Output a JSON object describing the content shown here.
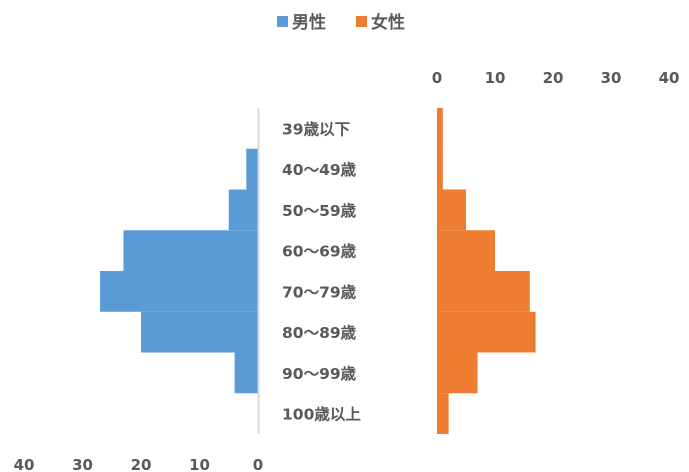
{
  "chart_data": {
    "type": "bar",
    "subtype": "population-pyramid",
    "categories": [
      "39歳以下",
      "40〜49歳",
      "50〜59歳",
      "60〜69歳",
      "70〜79歳",
      "80〜89歳",
      "90〜99歳",
      "100歳以上"
    ],
    "series": [
      {
        "name": "男性",
        "values": [
          0,
          2,
          5,
          23,
          27,
          20,
          4,
          0
        ],
        "color": "#5b9bd5"
      },
      {
        "name": "女性",
        "values": [
          1,
          1,
          5,
          10,
          16,
          17,
          7,
          2
        ],
        "color": "#ed7d31"
      }
    ],
    "left_axis": {
      "ticks": [
        "40",
        "30",
        "20",
        "10",
        "0"
      ],
      "range": [
        0,
        40
      ],
      "reversed": true,
      "position": "bottom"
    },
    "right_axis": {
      "ticks": [
        "0",
        "10",
        "20",
        "30",
        "40"
      ],
      "range": [
        0,
        40
      ],
      "position": "top"
    },
    "legend": {
      "position": "top-center"
    },
    "grid": false
  }
}
